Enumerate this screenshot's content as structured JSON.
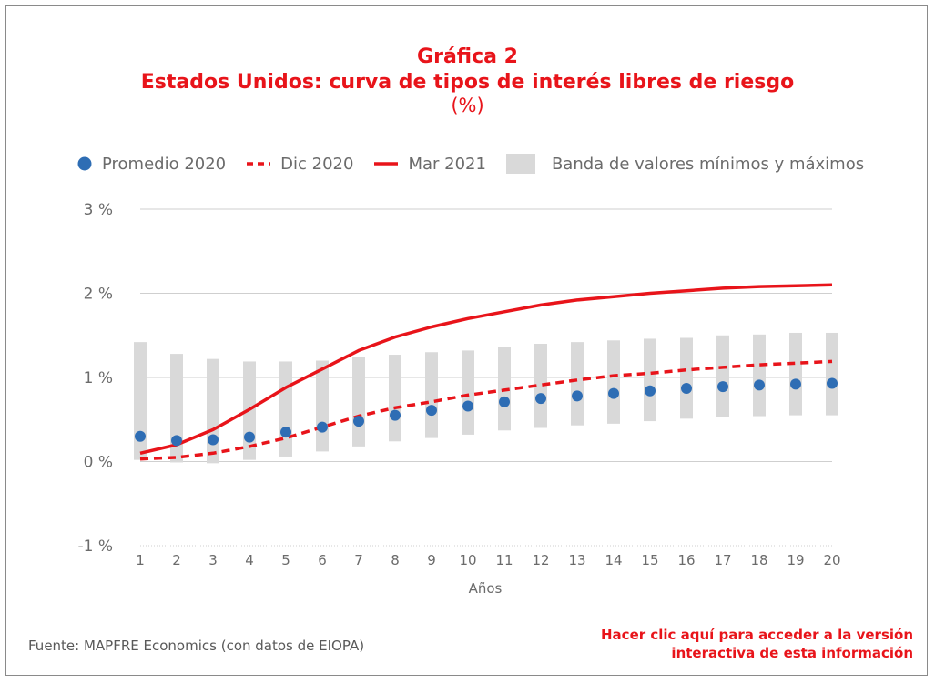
{
  "header": {
    "title": "Gráfica 2",
    "subtitle": "Estados Unidos: curva de tipos de interés libres de riesgo",
    "unit": "(%)"
  },
  "footer": {
    "source": "Fuente: MAPFRE Economics (con datos de EIOPA)",
    "link_line1": "Hacer clic aquí para acceder a la versión",
    "link_line2": "interactiva de esta información"
  },
  "colors": {
    "promedio": "#2e6db4",
    "lines": "#e8141a",
    "band": "#d9d9d9",
    "grid": "#cfcfcf"
  },
  "chart_data": {
    "type": "line",
    "xlabel": "Años",
    "ylabel": "",
    "x": [
      1,
      2,
      3,
      4,
      5,
      6,
      7,
      8,
      9,
      10,
      11,
      12,
      13,
      14,
      15,
      16,
      17,
      18,
      19,
      20
    ],
    "ylim": [
      -1,
      3
    ],
    "yticks": [
      3,
      2,
      1,
      0,
      -1
    ],
    "ytick_labels": [
      "3 %",
      "2 %",
      "1 %",
      "0 %",
      "-1 %"
    ],
    "legend_position": "top",
    "series": [
      {
        "name": "Promedio 2020",
        "kind": "scatter",
        "values": [
          0.3,
          0.25,
          0.26,
          0.29,
          0.35,
          0.41,
          0.48,
          0.55,
          0.61,
          0.66,
          0.71,
          0.75,
          0.78,
          0.81,
          0.84,
          0.87,
          0.89,
          0.91,
          0.92,
          0.93
        ]
      },
      {
        "name": "Dic 2020",
        "kind": "dashed-line",
        "values": [
          0.03,
          0.05,
          0.1,
          0.18,
          0.28,
          0.41,
          0.54,
          0.64,
          0.71,
          0.79,
          0.85,
          0.91,
          0.97,
          1.02,
          1.05,
          1.09,
          1.12,
          1.15,
          1.17,
          1.19
        ]
      },
      {
        "name": "Mar 2021",
        "kind": "line",
        "values": [
          0.1,
          0.2,
          0.38,
          0.62,
          0.88,
          1.1,
          1.32,
          1.48,
          1.6,
          1.7,
          1.78,
          1.86,
          1.92,
          1.96,
          2.0,
          2.03,
          2.06,
          2.08,
          2.09,
          2.1
        ]
      },
      {
        "name": "Banda de valores mínimos y máximos",
        "kind": "band",
        "low": [
          0.02,
          -0.01,
          -0.02,
          0.02,
          0.06,
          0.12,
          0.18,
          0.24,
          0.28,
          0.32,
          0.37,
          0.4,
          0.43,
          0.45,
          0.48,
          0.51,
          0.53,
          0.54,
          0.55,
          0.55
        ],
        "high": [
          1.42,
          1.28,
          1.22,
          1.19,
          1.19,
          1.2,
          1.24,
          1.27,
          1.3,
          1.32,
          1.36,
          1.4,
          1.42,
          1.44,
          1.46,
          1.47,
          1.5,
          1.51,
          1.53,
          1.53
        ]
      }
    ]
  }
}
